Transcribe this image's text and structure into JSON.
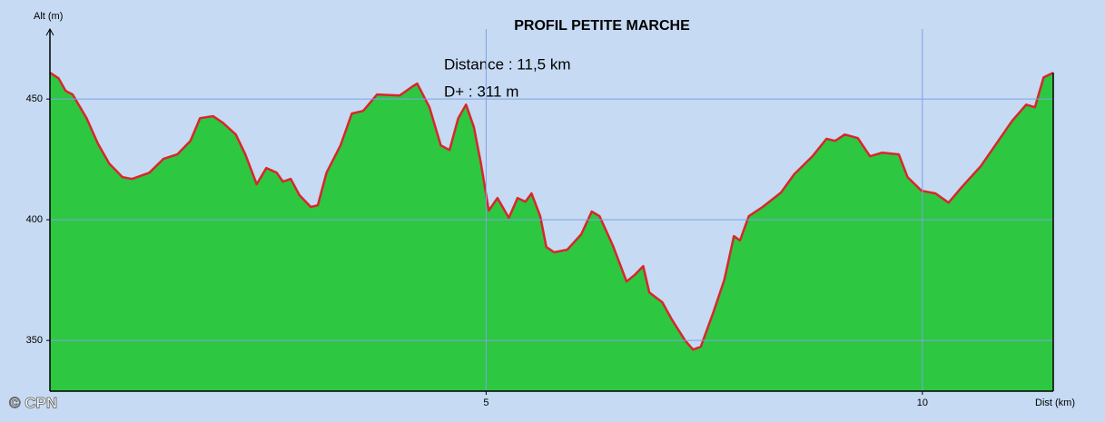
{
  "chart_data": {
    "type": "area",
    "title": "PROFIL PETITE MARCHE",
    "annotations": [
      "Distance : 11,5 km",
      "D+ :  311 m"
    ],
    "credit": "© CPN",
    "x_label": "Dist (km)",
    "y_label": "Alt (m)",
    "xlim": [
      0,
      11.5
    ],
    "ylim": [
      329,
      479
    ],
    "xticks": [
      5,
      10
    ],
    "yticks": [
      350,
      400,
      450
    ],
    "grid": true,
    "fill_color": "#2dc742",
    "line_color": "#d9262b",
    "x": [
      0,
      0.1,
      0.18,
      0.26,
      0.42,
      0.55,
      0.68,
      0.83,
      0.94,
      1.14,
      1.3,
      1.46,
      1.61,
      1.72,
      1.87,
      1.98,
      2.13,
      2.24,
      2.37,
      2.48,
      2.6,
      2.67,
      2.76,
      2.86,
      2.99,
      3.07,
      3.17,
      3.33,
      3.46,
      3.59,
      3.75,
      4.01,
      4.16,
      4.21,
      4.35,
      4.48,
      4.58,
      4.68,
      4.77,
      4.86,
      4.94,
      5.03,
      5.13,
      5.26,
      5.36,
      5.45,
      5.52,
      5.62,
      5.69,
      5.78,
      5.93,
      6.09,
      6.21,
      6.3,
      6.45,
      6.61,
      6.71,
      6.8,
      6.87,
      7.02,
      7.13,
      7.28,
      7.37,
      7.46,
      7.6,
      7.73,
      7.84,
      7.91,
      8.01,
      8.17,
      8.38,
      8.53,
      8.74,
      8.9,
      9.0,
      9.11,
      9.26,
      9.4,
      9.54,
      9.73,
      9.83,
      9.99,
      10.15,
      10.3,
      10.46,
      10.67,
      10.87,
      11.03,
      11.19,
      11.29,
      11.39,
      11.5
    ],
    "values": [
      460.9,
      458.6,
      453.4,
      451.9,
      442.1,
      431.6,
      423.3,
      417.7,
      416.9,
      419.5,
      425.2,
      427.1,
      432.7,
      442.1,
      442.9,
      440.2,
      435.3,
      427.1,
      414.7,
      421.4,
      419.5,
      415.8,
      416.9,
      410.2,
      405.3,
      406.0,
      419.5,
      430.8,
      444.0,
      445.1,
      451.9,
      451.5,
      455.3,
      456.4,
      446.6,
      430.8,
      428.9,
      442.1,
      447.7,
      438.3,
      423.3,
      403.8,
      409.0,
      400.8,
      409.0,
      407.5,
      410.9,
      401.5,
      388.7,
      386.5,
      387.6,
      394.0,
      403.4,
      401.5,
      389.5,
      374.4,
      377.4,
      380.8,
      369.9,
      365.8,
      358.6,
      350.0,
      346.2,
      347.4,
      361.3,
      375.2,
      393.2,
      391.4,
      401.5,
      405.3,
      411.3,
      418.8,
      426.3,
      433.5,
      432.7,
      435.3,
      433.8,
      426.3,
      427.8,
      427.1,
      417.7,
      412.0,
      410.9,
      407.1,
      413.9,
      422.2,
      432.7,
      441.0,
      447.7,
      446.6,
      459.0,
      460.9
    ]
  }
}
